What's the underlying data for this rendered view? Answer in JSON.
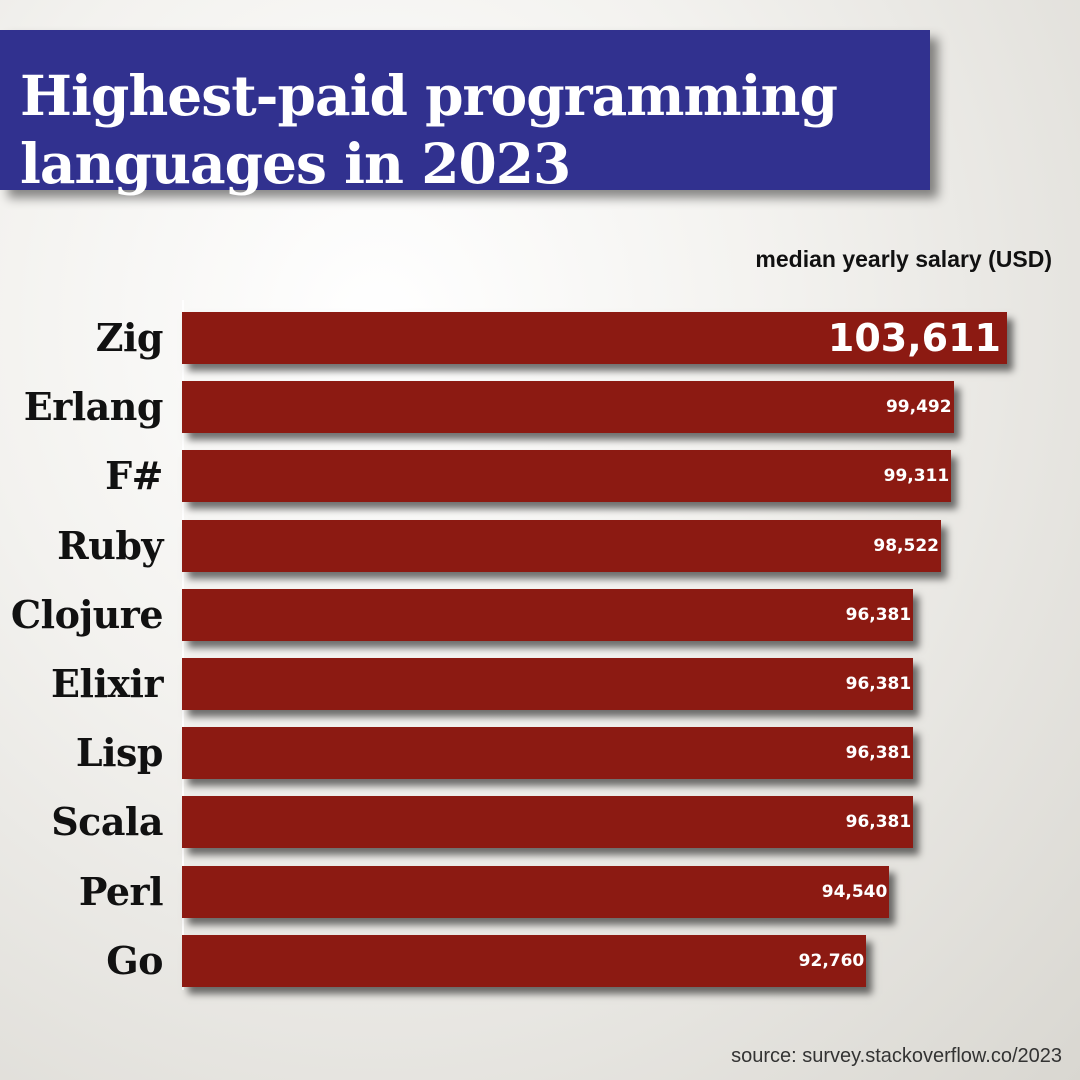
{
  "title": "Highest-paid programming languages in 2023",
  "units_label": "median yearly salary (USD)",
  "source": "source: survey.stackoverflow.co/2023",
  "colors": {
    "banner": "#31318f",
    "bar": "#8c1a12",
    "label": "#111111",
    "value_text": "#ffffff"
  },
  "chart_data": {
    "type": "bar",
    "orientation": "horizontal",
    "title": "Highest-paid programming languages in 2023",
    "value_label": "median yearly salary (USD)",
    "categories": [
      "Zig",
      "Erlang",
      "F#",
      "Ruby",
      "Clojure",
      "Elixir",
      "Lisp",
      "Scala",
      "Perl",
      "Go"
    ],
    "values": [
      103611,
      99492,
      99311,
      98522,
      96381,
      96381,
      96381,
      96381,
      94540,
      92760
    ],
    "value_labels": [
      "103,611",
      "99,492",
      "99,311",
      "98,522",
      "96,381",
      "96,381",
      "96,381",
      "96,381",
      "94,540",
      "92,760"
    ],
    "xlim": [
      0,
      103611
    ],
    "grid": false,
    "legend": "none"
  }
}
